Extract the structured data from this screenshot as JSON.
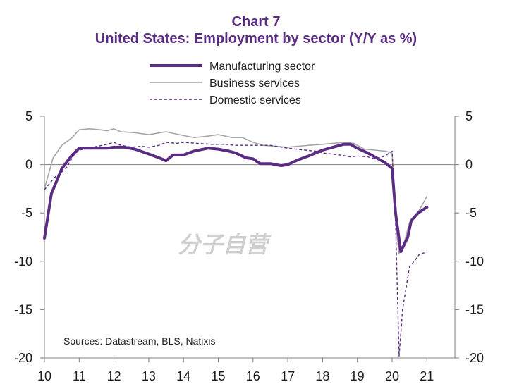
{
  "chart_data": {
    "type": "line",
    "title": "Chart 7",
    "subtitle": "United States: Employment by sector (Y/Y as %)",
    "source": "Sources:  Datastream,  BLS, Natixis",
    "watermark": "分子自营",
    "ylim": [
      -20,
      5
    ],
    "xlim": [
      10,
      21.8
    ],
    "y_ticks": [
      "5",
      "0",
      "-5",
      "-10",
      "-15",
      "-20"
    ],
    "y_tick_values": [
      5,
      0,
      -5,
      -10,
      -15,
      -20
    ],
    "x_ticks": [
      "10",
      "11",
      "12",
      "13",
      "14",
      "15",
      "16",
      "17",
      "18",
      "19",
      "20",
      "21"
    ],
    "x_tick_values": [
      10,
      11,
      12,
      13,
      14,
      15,
      16,
      17,
      18,
      19,
      20,
      21
    ],
    "legend_position": "top-center",
    "series": [
      {
        "name": "Manufacturing sector",
        "style": "solid-thick",
        "color": "#5B2C83",
        "points": [
          [
            10.0,
            -7.6
          ],
          [
            10.2,
            -3.0
          ],
          [
            10.5,
            -0.4
          ],
          [
            10.8,
            1.0
          ],
          [
            11.0,
            1.7
          ],
          [
            11.5,
            1.7
          ],
          [
            11.8,
            1.7
          ],
          [
            12.0,
            1.8
          ],
          [
            12.3,
            1.8
          ],
          [
            12.6,
            1.6
          ],
          [
            13.0,
            1.1
          ],
          [
            13.3,
            0.7
          ],
          [
            13.5,
            0.4
          ],
          [
            13.7,
            1.0
          ],
          [
            14.0,
            1.0
          ],
          [
            14.3,
            1.4
          ],
          [
            14.7,
            1.7
          ],
          [
            15.0,
            1.6
          ],
          [
            15.3,
            1.4
          ],
          [
            15.5,
            1.2
          ],
          [
            15.8,
            0.7
          ],
          [
            16.0,
            0.6
          ],
          [
            16.2,
            0.1
          ],
          [
            16.5,
            0.1
          ],
          [
            16.8,
            -0.1
          ],
          [
            17.0,
            0.0
          ],
          [
            17.3,
            0.5
          ],
          [
            17.6,
            0.9
          ],
          [
            18.0,
            1.5
          ],
          [
            18.3,
            1.8
          ],
          [
            18.6,
            2.1
          ],
          [
            18.8,
            2.1
          ],
          [
            19.0,
            1.7
          ],
          [
            19.3,
            1.2
          ],
          [
            19.6,
            0.6
          ],
          [
            19.8,
            0.2
          ],
          [
            20.0,
            -0.4
          ],
          [
            20.1,
            -5.0
          ],
          [
            20.25,
            -9.0
          ],
          [
            20.45,
            -7.5
          ],
          [
            20.55,
            -5.8
          ],
          [
            20.75,
            -5.0
          ],
          [
            21.0,
            -4.4
          ]
        ]
      },
      {
        "name": "Business services",
        "style": "solid-thin",
        "color": "#a6a6a6",
        "points": [
          [
            10.0,
            -2.5
          ],
          [
            10.25,
            0.7
          ],
          [
            10.5,
            2.0
          ],
          [
            10.8,
            2.8
          ],
          [
            11.0,
            3.6
          ],
          [
            11.3,
            3.7
          ],
          [
            11.6,
            3.6
          ],
          [
            11.8,
            3.5
          ],
          [
            12.0,
            3.7
          ],
          [
            12.2,
            3.4
          ],
          [
            12.6,
            3.3
          ],
          [
            13.0,
            3.1
          ],
          [
            13.5,
            3.4
          ],
          [
            14.0,
            3.0
          ],
          [
            14.3,
            2.8
          ],
          [
            14.6,
            2.9
          ],
          [
            15.0,
            3.1
          ],
          [
            15.4,
            2.8
          ],
          [
            15.7,
            2.8
          ],
          [
            16.0,
            2.3
          ],
          [
            16.3,
            2.0
          ],
          [
            16.6,
            1.9
          ],
          [
            17.0,
            1.8
          ],
          [
            17.3,
            1.9
          ],
          [
            17.6,
            2.0
          ],
          [
            18.0,
            2.1
          ],
          [
            18.3,
            2.2
          ],
          [
            18.6,
            2.3
          ],
          [
            18.9,
            2.2
          ],
          [
            19.2,
            1.6
          ],
          [
            19.5,
            1.5
          ],
          [
            19.8,
            1.4
          ],
          [
            20.0,
            1.2
          ],
          [
            20.1,
            -6.0
          ],
          [
            20.2,
            -9.2
          ],
          [
            20.35,
            -8.0
          ],
          [
            20.5,
            -6.0
          ],
          [
            20.8,
            -4.6
          ],
          [
            21.0,
            -3.3
          ]
        ]
      },
      {
        "name": "Domestic services",
        "style": "dashed",
        "color": "#5B2C83",
        "points": [
          [
            10.0,
            -2.6
          ],
          [
            10.3,
            -1.3
          ],
          [
            10.6,
            -0.5
          ],
          [
            10.85,
            1.0
          ],
          [
            11.0,
            1.5
          ],
          [
            11.4,
            1.8
          ],
          [
            11.8,
            2.1
          ],
          [
            12.0,
            2.3
          ],
          [
            12.2,
            2.0
          ],
          [
            12.5,
            1.8
          ],
          [
            12.8,
            1.9
          ],
          [
            13.0,
            1.8
          ],
          [
            13.3,
            2.0
          ],
          [
            13.5,
            2.3
          ],
          [
            13.8,
            2.2
          ],
          [
            14.0,
            2.3
          ],
          [
            14.4,
            2.2
          ],
          [
            14.8,
            2.1
          ],
          [
            15.2,
            2.1
          ],
          [
            15.5,
            2.0
          ],
          [
            15.8,
            2.0
          ],
          [
            16.0,
            2.0
          ],
          [
            16.5,
            2.0
          ],
          [
            17.0,
            1.7
          ],
          [
            17.5,
            1.5
          ],
          [
            17.8,
            1.4
          ],
          [
            18.0,
            1.2
          ],
          [
            18.5,
            1.0
          ],
          [
            18.8,
            0.8
          ],
          [
            19.0,
            0.9
          ],
          [
            19.3,
            0.8
          ],
          [
            19.5,
            0.6
          ],
          [
            19.8,
            0.9
          ],
          [
            20.0,
            1.4
          ],
          [
            20.1,
            -6.0
          ],
          [
            20.2,
            -19.8
          ],
          [
            20.3,
            -15.0
          ],
          [
            20.5,
            -10.6
          ],
          [
            20.7,
            -9.7
          ],
          [
            20.8,
            -9.2
          ],
          [
            21.0,
            -9.1
          ]
        ]
      }
    ]
  }
}
